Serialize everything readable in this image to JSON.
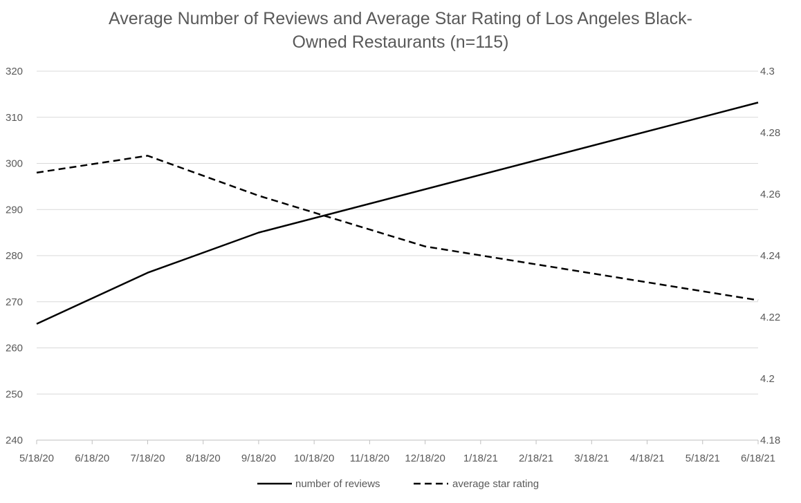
{
  "chart_data": {
    "type": "line",
    "title_lines": [
      "Average Number of Reviews and Average Star Rating of Los Angeles Black-",
      "Owned Restaurants (n=115)"
    ],
    "categories": [
      "5/18/20",
      "6/18/20",
      "7/18/20",
      "8/18/20",
      "9/18/20",
      "10/18/20",
      "11/18/20",
      "12/18/20",
      "1/18/21",
      "2/18/21",
      "3/18/21",
      "4/18/21",
      "5/18/21",
      "6/18/21"
    ],
    "y_left": {
      "min": 240,
      "max": 320,
      "step": 10,
      "ticks": [
        "240",
        "250",
        "260",
        "270",
        "280",
        "290",
        "300",
        "310",
        "320"
      ]
    },
    "y_right": {
      "min": 4.18,
      "max": 4.3,
      "ticks": [
        "4.18",
        "4.2",
        "4.22",
        "4.24",
        "4.26",
        "4.28",
        "4.3"
      ]
    },
    "grid": true,
    "legend_position": "bottom",
    "series": [
      {
        "name": "number of reviews",
        "axis": "left",
        "style": "solid",
        "color": "#000000",
        "points": [
          {
            "x": "5/18/20",
            "y": 265.2
          },
          {
            "x": "7/18/20",
            "y": 276.3
          },
          {
            "x": "9/18/20",
            "y": 285.0
          },
          {
            "x": "6/18/21",
            "y": 313.2
          }
        ]
      },
      {
        "name": "average star rating",
        "axis": "right",
        "style": "dashed",
        "color": "#000000",
        "points": [
          {
            "x": "5/18/20",
            "y": 4.267
          },
          {
            "x": "7/18/20",
            "y": 4.2725
          },
          {
            "x": "9/18/20",
            "y": 4.2595
          },
          {
            "x": "12/18/20",
            "y": 4.243
          },
          {
            "x": "6/18/21",
            "y": 4.2255
          }
        ]
      }
    ]
  }
}
